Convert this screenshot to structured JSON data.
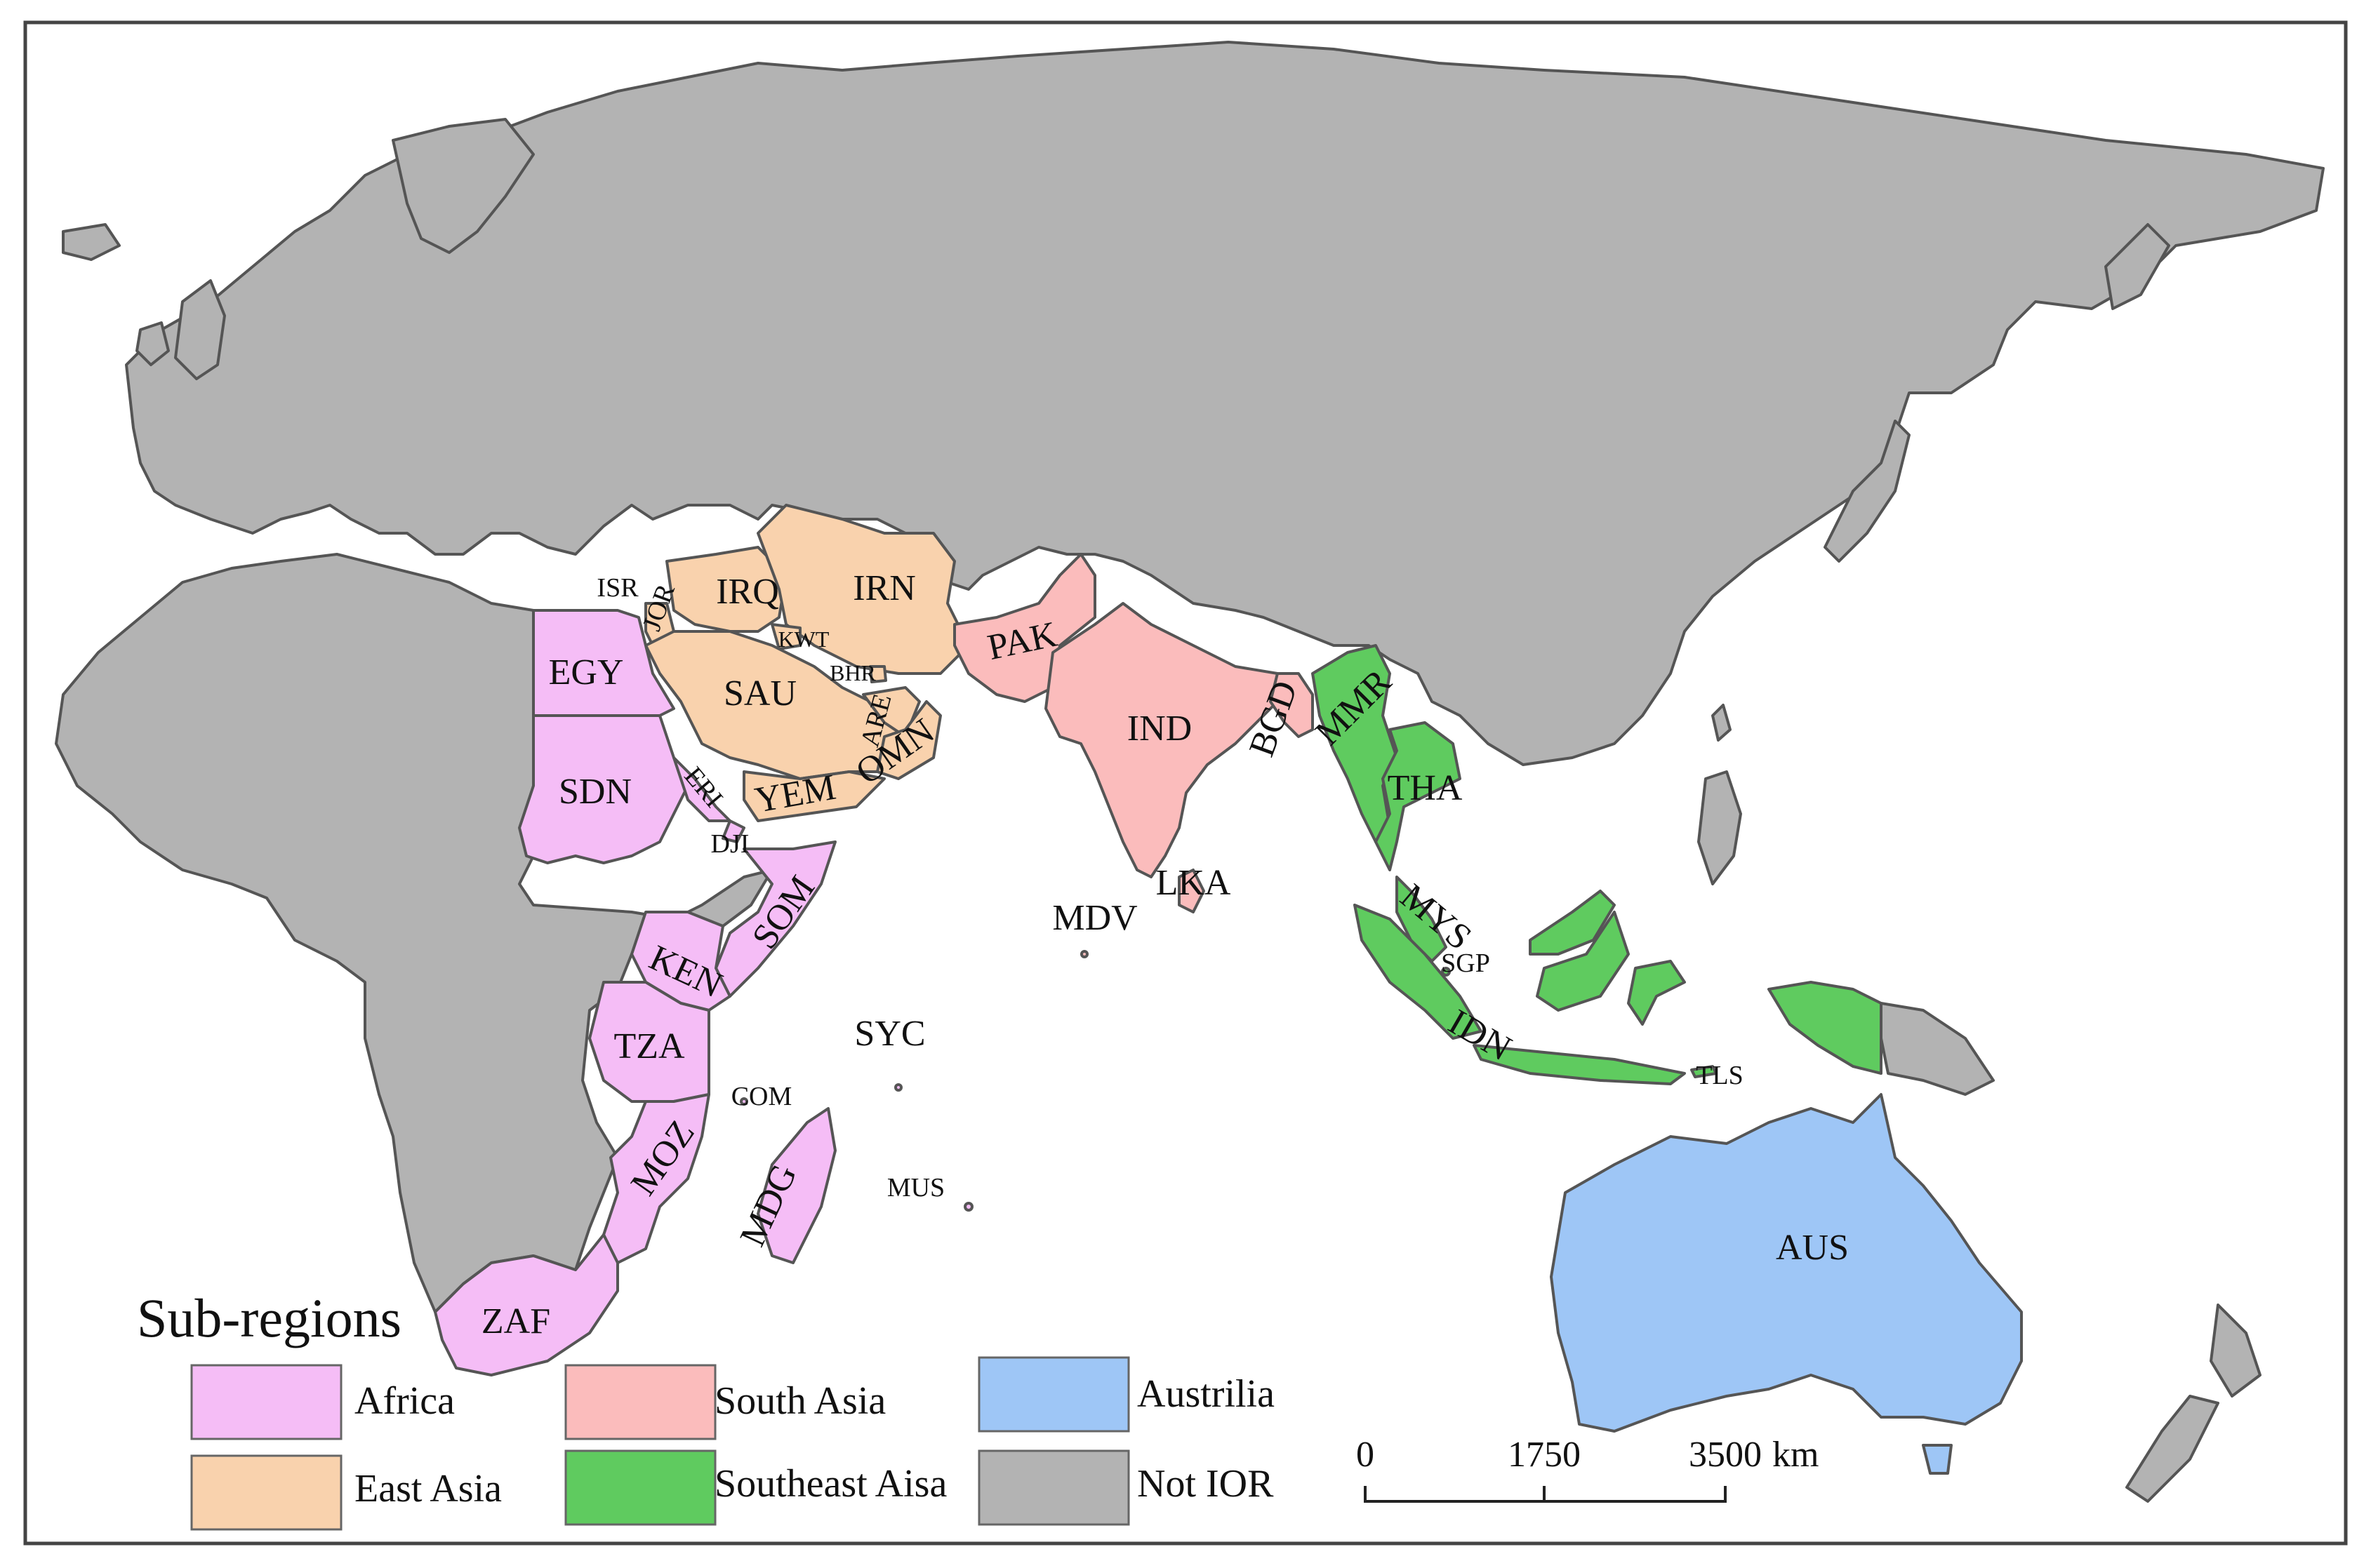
{
  "legend": {
    "title": "Sub-regions",
    "items": [
      {
        "label": "Africa",
        "color": "#f5bdf6"
      },
      {
        "label": "South Asia",
        "color": "#fbbcbc"
      },
      {
        "label": "Austrilia",
        "color": "#9ec6f6"
      },
      {
        "label": "East Asia",
        "color": "#f9d2ad"
      },
      {
        "label": "Southeast Aisa",
        "color": "#5fcb5f"
      },
      {
        "label": "Not IOR",
        "color": "#b3b3b3"
      }
    ]
  },
  "scale_bar": {
    "ticks": [
      "0",
      "1750",
      "3500"
    ],
    "unit": "km"
  },
  "countries": {
    "ISR": "ISR",
    "JOR": "JOR",
    "IRQ": "IRQ",
    "IRN": "IRN",
    "KWT": "KWT",
    "BHR": "BHR",
    "SAU": "SAU",
    "ARE": "ARE",
    "OMN": "OMN",
    "YEM": "YEM",
    "EGY": "EGY",
    "SDN": "SDN",
    "ERI": "ERI",
    "DJI": "DJI",
    "SOM": "SOM",
    "KEN": "KEN",
    "TZA": "TZA",
    "COM": "COM",
    "MOZ": "MOZ",
    "MDG": "MDG",
    "ZAF": "ZAF",
    "SYC": "SYC",
    "MUS": "MUS",
    "MDV": "MDV",
    "PAK": "PAK",
    "IND": "IND",
    "LKA": "LKA",
    "BGD": "BGD",
    "MMR": "MMR",
    "THA": "THA",
    "MYS": "MYS",
    "SGP": "SGP",
    "IDN": "IDN",
    "TLS": "TLS",
    "AUS": "AUS"
  },
  "colors": {
    "not_ior": "#b3b3b3",
    "africa": "#f5bdf6",
    "east_asia": "#f9d2ad",
    "south_asia": "#fbbcbc",
    "southeast_asia": "#5fcb5f",
    "australia": "#9ec6f6",
    "border": "#555555"
  }
}
